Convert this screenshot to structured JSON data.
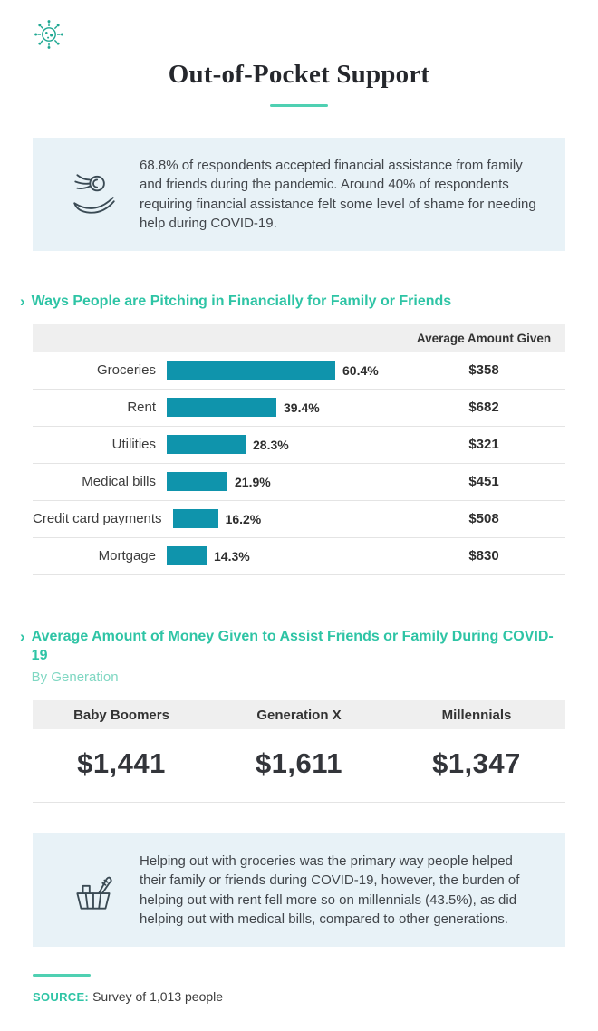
{
  "colors": {
    "accent_teal": "#2ec4a5",
    "bar_teal": "#0f94ac",
    "box_bg": "#e8f2f7",
    "header_bg": "#efefef"
  },
  "icons": {
    "chevron": "›"
  },
  "header": {
    "title": "Out-of-Pocket Support"
  },
  "intro_box": {
    "text": "68.8% of respondents accepted financial assistance from family and friends during the pandemic. Around 40% of respondents requiring financial assistance felt some level of shame for needing help during COVID-19."
  },
  "bar_section": {
    "heading": "Ways People are Pitching in Financially for Family or Friends",
    "amount_header": "Average Amount Given",
    "rows": [
      {
        "label": "Groceries",
        "pct": "60.4%",
        "amount": "$358"
      },
      {
        "label": "Rent",
        "pct": "39.4%",
        "amount": "$682"
      },
      {
        "label": "Utilities",
        "pct": "28.3%",
        "amount": "$321"
      },
      {
        "label": "Medical bills",
        "pct": "21.9%",
        "amount": "$451"
      },
      {
        "label": "Credit card payments",
        "pct": "16.2%",
        "amount": "$508"
      },
      {
        "label": "Mortgage",
        "pct": "14.3%",
        "amount": "$830"
      }
    ]
  },
  "generation_section": {
    "heading": "Average Amount of Money Given to Assist Friends or Family During COVID-19",
    "subtitle": "By Generation",
    "columns": [
      {
        "label": "Baby Boomers",
        "value": "$1,441"
      },
      {
        "label": "Generation X",
        "value": "$1,611"
      },
      {
        "label": "Millennials",
        "value": "$1,347"
      }
    ]
  },
  "summary_box": {
    "text": "Helping out with groceries was the primary way people helped their family or friends during COVID-19, however, the burden of helping out with rent fell more so on millennials (43.5%), as did helping out with medical bills, compared to other generations."
  },
  "source": {
    "label": "SOURCE:",
    "text": "Survey of 1,013 people"
  },
  "chart_data": [
    {
      "type": "bar",
      "orientation": "horizontal",
      "title": "Ways People are Pitching in Financially for Family or Friends",
      "categories": [
        "Groceries",
        "Rent",
        "Utilities",
        "Medical bills",
        "Credit card payments",
        "Mortgage"
      ],
      "values": [
        60.4,
        39.4,
        28.3,
        21.9,
        16.2,
        14.3
      ],
      "unit": "%",
      "xlim": [
        0,
        65
      ],
      "extra_column": {
        "header": "Average Amount Given",
        "values": [
          358,
          682,
          321,
          451,
          508,
          830
        ],
        "unit": "$"
      },
      "legend": "none",
      "grid": false
    },
    {
      "type": "table",
      "title": "Average Amount of Money Given to Assist Friends or Family During COVID-19",
      "subtitle": "By Generation",
      "categories": [
        "Baby Boomers",
        "Generation X",
        "Millennials"
      ],
      "values": [
        1441,
        1611,
        1347
      ],
      "unit": "$"
    }
  ]
}
